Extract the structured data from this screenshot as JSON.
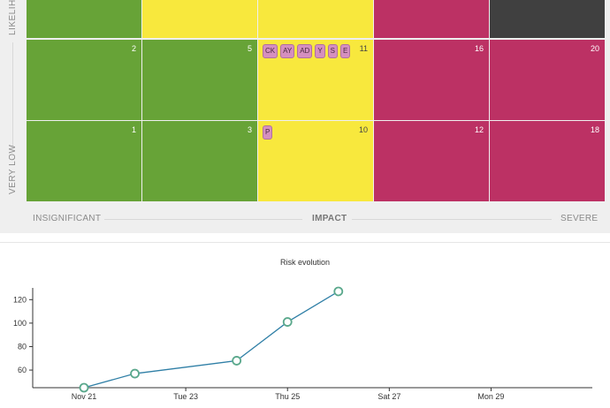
{
  "matrix": {
    "likelihood_label_top": "LIKELIHO",
    "likelihood_label_bottom": "VERY LOW",
    "impact_label": "IMPACT",
    "impact_min_label": "INSIGNIFICANT",
    "impact_max_label": "SEVERE",
    "colors": {
      "green": "#67a337",
      "yellow": "#f8e83d",
      "red": "#bc3164",
      "dark": "#404040"
    },
    "rows": [
      {
        "cells": [
          {
            "num": "",
            "color": "green",
            "tags": []
          },
          {
            "num": "",
            "color": "yellow",
            "tags": []
          },
          {
            "num": "",
            "color": "yellow",
            "tags": []
          },
          {
            "num": "",
            "color": "red",
            "tags": []
          },
          {
            "num": "",
            "color": "dark",
            "tags": []
          }
        ]
      },
      {
        "cells": [
          {
            "num": "2",
            "color": "green",
            "tags": []
          },
          {
            "num": "5",
            "color": "green",
            "tags": []
          },
          {
            "num": "11",
            "color": "yellow",
            "tags": [
              "CK",
              "AY",
              "AD",
              "Y",
              "S",
              "E"
            ]
          },
          {
            "num": "16",
            "color": "red",
            "tags": []
          },
          {
            "num": "20",
            "color": "red",
            "tags": []
          }
        ]
      },
      {
        "cells": [
          {
            "num": "1",
            "color": "green",
            "tags": []
          },
          {
            "num": "3",
            "color": "green",
            "tags": []
          },
          {
            "num": "10",
            "color": "yellow",
            "tags": [
              "P"
            ]
          },
          {
            "num": "12",
            "color": "red",
            "tags": []
          },
          {
            "num": "18",
            "color": "red",
            "tags": []
          }
        ]
      }
    ]
  },
  "chart_data": {
    "type": "line",
    "title": "Risk evolution",
    "x": [
      "2021-11-21",
      "2021-11-22",
      "2021-11-24",
      "2021-11-25",
      "2021-11-26"
    ],
    "y": [
      45,
      57,
      68,
      101,
      127
    ],
    "x_tick_labels": [
      "Nov 21",
      "Tue 23",
      "Thu 25",
      "Sat 27",
      "Mon 29"
    ],
    "y_tick_labels": [
      "60",
      "80",
      "100",
      "120"
    ],
    "ylim": [
      45,
      130
    ],
    "xlim": [
      "2021-11-21",
      "2021-11-30"
    ],
    "line_color": "#2f7fa6",
    "marker_color": "#5aa88c",
    "grid": false
  }
}
